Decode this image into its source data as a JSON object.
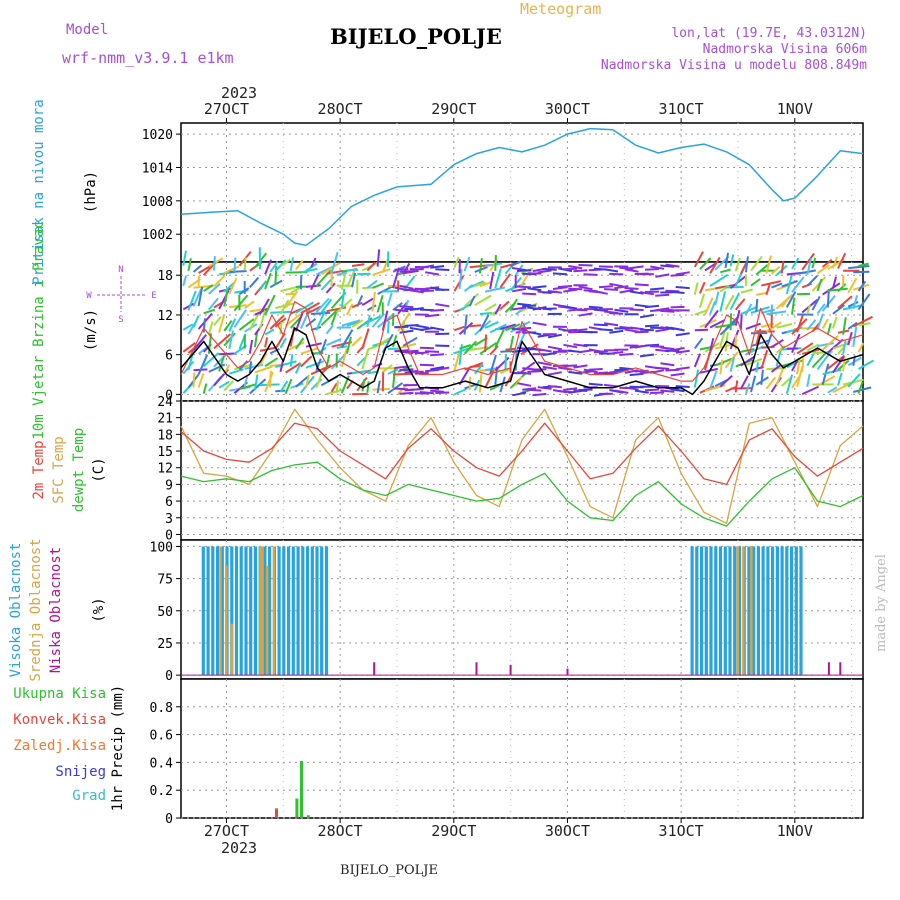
{
  "header": {
    "model_label": "Model",
    "model_name": "wrf-nmm_v3.9.1 e1km",
    "meteogram": "Meteogram",
    "station": "BIJELO_POLJE",
    "lonlat": "lon,lat (19.7E, 43.0312N)",
    "elevation": "Nadmorska Visina 606m",
    "model_elevation": "Nadmorska Visina u modelu 808.849m",
    "year": "2023",
    "footer_station": "BIJELO_POLJE",
    "credit": "made by Angel"
  },
  "colors": {
    "pressure": "#29a3e0",
    "temp2m": "#e8463a",
    "sfc_temp": "#d9a441",
    "dewpt": "#2fc12f",
    "high_cloud": "#29a3e0",
    "mid_cloud": "#d9a441",
    "low_cloud": "#b0129a",
    "wind_speed": "#000000",
    "gust": "#e8463a",
    "total_precip": "#2fc12f",
    "conv_precip": "#e8463a",
    "frz_precip": "#f07a2a",
    "snow": "#3a3ae0",
    "hail": "#33c0c0",
    "label_purple": "#a64fd6",
    "label_orange": "#e8b34a"
  },
  "chart_data": {
    "type": "line",
    "x_axis": {
      "unit": "days",
      "range": [
        26.6,
        32.6
      ],
      "top_ticks": [
        "27OCT",
        "28OCT",
        "29OCT",
        "30OCT",
        "31OCT",
        "1NOV"
      ],
      "bottom_ticks": [
        "27OCT",
        "28OCT",
        "29OCT",
        "30OCT",
        "31OCT",
        "1NOV"
      ],
      "grid": true
    },
    "pressure": {
      "ylabel": "Pritisak na nivou mora",
      "unit": "(hPa)",
      "ylim": [
        997,
        1022
      ],
      "yticks": [
        1002,
        1008,
        1014,
        1020
      ],
      "x": [
        26.6,
        26.9,
        27.1,
        27.3,
        27.5,
        27.6,
        27.7,
        27.9,
        28.1,
        28.3,
        28.5,
        28.8,
        29.0,
        29.2,
        29.4,
        29.6,
        29.8,
        30.0,
        30.2,
        30.4,
        30.6,
        30.8,
        31.0,
        31.2,
        31.4,
        31.6,
        31.8,
        31.9,
        32.0,
        32.2,
        32.4,
        32.6
      ],
      "values": [
        1005.6,
        1006.0,
        1006.2,
        1004.0,
        1002.0,
        1000.4,
        1000.0,
        1003.0,
        1007.0,
        1009.0,
        1010.5,
        1011.0,
        1014.5,
        1016.5,
        1017.6,
        1016.8,
        1018.0,
        1020.0,
        1021.0,
        1020.8,
        1018.0,
        1016.6,
        1017.6,
        1018.2,
        1016.8,
        1014.5,
        1010.0,
        1008.0,
        1008.5,
        1012.5,
        1017.0,
        1016.5
      ]
    },
    "wind": {
      "ylabel": "10m Vjetar Brzina i Pravac",
      "unit": "(m/s)",
      "ylim": [
        -1,
        20
      ],
      "yticks": [
        0,
        6,
        12,
        18
      ],
      "compass": [
        "N",
        "S",
        "W",
        "E"
      ],
      "speed_x": [
        26.6,
        26.8,
        27.0,
        27.1,
        27.2,
        27.3,
        27.4,
        27.5,
        27.6,
        27.7,
        27.8,
        27.9,
        28.0,
        28.1,
        28.2,
        28.3,
        28.4,
        28.5,
        28.6,
        28.7,
        28.9,
        29.1,
        29.3,
        29.5,
        29.6,
        29.8,
        30.0,
        30.2,
        30.4,
        30.6,
        30.8,
        31.0,
        31.1,
        31.2,
        31.3,
        31.4,
        31.5,
        31.6,
        31.7,
        31.8,
        31.9,
        32.0,
        32.2,
        32.4,
        32.6
      ],
      "speed": [
        4,
        8,
        3,
        2,
        3,
        5,
        8,
        5,
        10,
        9,
        4,
        2,
        3,
        2,
        1,
        2,
        7,
        8,
        4,
        1,
        1,
        2,
        1,
        2,
        8,
        3,
        2,
        1,
        1,
        2,
        1,
        1,
        0,
        2,
        5,
        8,
        7,
        3,
        9,
        6,
        4,
        5,
        7,
        5,
        6
      ],
      "gust": [
        3,
        10,
        6,
        4,
        5,
        8,
        12,
        9,
        14,
        13,
        7,
        4,
        5,
        4,
        3,
        4,
        11,
        12,
        7,
        3,
        3,
        4,
        3,
        4,
        11,
        5,
        4,
        3,
        3,
        4,
        3,
        2,
        2,
        4,
        8,
        12,
        11,
        6,
        13,
        9,
        7,
        8,
        10,
        8,
        9
      ]
    },
    "temperature": {
      "ylabel_a": "2m Temp",
      "ylabel_b": "SFC Temp",
      "ylabel_c": "dewpt Temp",
      "unit": "(C)",
      "ylim": [
        -1,
        24
      ],
      "yticks": [
        0,
        3,
        6,
        9,
        12,
        15,
        18,
        21,
        24
      ],
      "x": [
        26.6,
        26.8,
        27.0,
        27.2,
        27.4,
        27.6,
        27.8,
        28.0,
        28.2,
        28.4,
        28.6,
        28.8,
        29.0,
        29.2,
        29.4,
        29.6,
        29.8,
        30.0,
        30.2,
        30.4,
        30.6,
        30.8,
        31.0,
        31.2,
        31.4,
        31.6,
        31.8,
        32.0,
        32.2,
        32.4,
        32.6
      ],
      "temp2m": [
        18.5,
        15.0,
        13.5,
        13.0,
        15.5,
        20.0,
        19.0,
        15.0,
        12.5,
        10.0,
        15.5,
        19.0,
        15.0,
        12.0,
        10.5,
        15.0,
        20.0,
        15.0,
        10.0,
        11.0,
        15.5,
        19.5,
        15.0,
        10.0,
        9.0,
        17.0,
        19.0,
        14.0,
        10.5,
        13.0,
        15.5
      ],
      "sfc_temp": [
        19.5,
        11.0,
        10.5,
        9.0,
        15.0,
        22.5,
        17.0,
        12.0,
        8.0,
        6.0,
        16.0,
        21.0,
        13.0,
        7.0,
        5.0,
        17.0,
        22.5,
        14.0,
        5.0,
        3.0,
        17.0,
        21.0,
        11.0,
        4.0,
        2.0,
        20.0,
        21.0,
        13.0,
        5.0,
        16.0,
        19.5
      ],
      "dewpt": [
        10.5,
        9.5,
        10.0,
        9.5,
        11.5,
        12.5,
        13.0,
        10.0,
        8.0,
        7.0,
        9.0,
        8.0,
        7.0,
        6.0,
        6.5,
        9.0,
        11.0,
        6.0,
        3.0,
        2.5,
        7.0,
        9.5,
        5.5,
        3.0,
        1.5,
        6.0,
        10.0,
        12.0,
        6.0,
        5.0,
        7.0
      ]
    },
    "clouds": {
      "ylabel_a": "Visoka Oblacnost",
      "ylabel_b": "Srednja Oblacnost",
      "ylabel_c": "Niska Oblacnost",
      "unit": "(%)",
      "ylim": [
        -3,
        105
      ],
      "yticks": [
        0,
        25,
        50,
        75,
        100
      ],
      "high_ranges": [
        [
          26.8,
          27.9
        ],
        [
          31.1,
          32.1
        ]
      ],
      "mid_x": [
        26.95,
        27.0,
        27.05,
        27.3,
        27.32,
        27.36,
        27.42,
        31.5,
        31.55,
        31.62
      ],
      "mid_values": [
        100,
        85,
        40,
        100,
        100,
        85,
        100,
        100,
        100,
        100
      ],
      "low_x": [
        28.3,
        29.2,
        29.5,
        30.0,
        32.3,
        32.4
      ],
      "low_values": [
        10,
        10,
        8,
        5,
        10,
        10
      ]
    },
    "precip": {
      "ylabel": "1hr Precip (mm)",
      "legend": [
        "Ukupna Kisa",
        "Konvek.Kisa",
        "Zaledj.Kisa",
        "Snijeg",
        "Grad"
      ],
      "ylim": [
        0,
        1.0
      ],
      "yticks": [
        0,
        0.2,
        0.4,
        0.6,
        0.8
      ],
      "ytick_labels": [
        "0",
        "0.2",
        "0.4",
        "0.6",
        "0.8"
      ],
      "total_x": [
        27.44,
        27.62,
        27.66,
        27.72
      ],
      "total_values": [
        0.07,
        0.14,
        0.41,
        0.02
      ],
      "conv_x": [
        27.44,
        27.62
      ],
      "conv_values": [
        0.06,
        0.01
      ]
    }
  }
}
